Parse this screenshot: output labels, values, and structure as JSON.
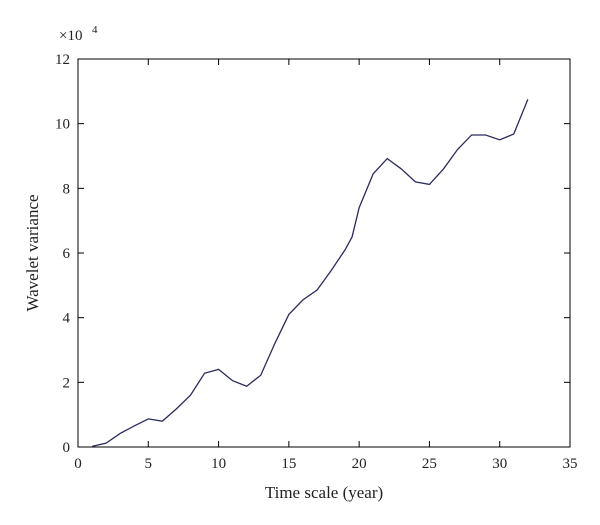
{
  "chart_data": {
    "type": "line",
    "title": "",
    "xlabel": "Time scale (year)",
    "ylabel": "Wavelet variance",
    "y_multiplier_base": "×10",
    "y_multiplier_exp": "4",
    "xlim": [
      0,
      35
    ],
    "ylim": [
      0,
      12
    ],
    "xticks": [
      "0",
      "5",
      "10",
      "15",
      "20",
      "25",
      "30",
      "35"
    ],
    "yticks": [
      "0",
      "2",
      "4",
      "6",
      "8",
      "10",
      "12"
    ],
    "grid": false,
    "line_color": "#2b2b5e",
    "series": [
      {
        "x": [
          1,
          2,
          3,
          4,
          5,
          6,
          7,
          8,
          9,
          10,
          11,
          12,
          13,
          14,
          15,
          16,
          17,
          18,
          19,
          19.5,
          20,
          21,
          22,
          23,
          24,
          25,
          26,
          27,
          28,
          29,
          30,
          31,
          32
        ],
        "values": [
          0.02,
          0.12,
          0.42,
          0.65,
          0.87,
          0.8,
          1.18,
          1.6,
          2.28,
          2.4,
          2.05,
          1.88,
          2.22,
          3.2,
          4.1,
          4.55,
          4.85,
          5.45,
          6.1,
          6.5,
          7.4,
          8.45,
          8.92,
          8.6,
          8.2,
          8.12,
          8.6,
          9.2,
          9.65,
          9.65,
          9.5,
          9.68,
          10.75
        ]
      }
    ]
  }
}
